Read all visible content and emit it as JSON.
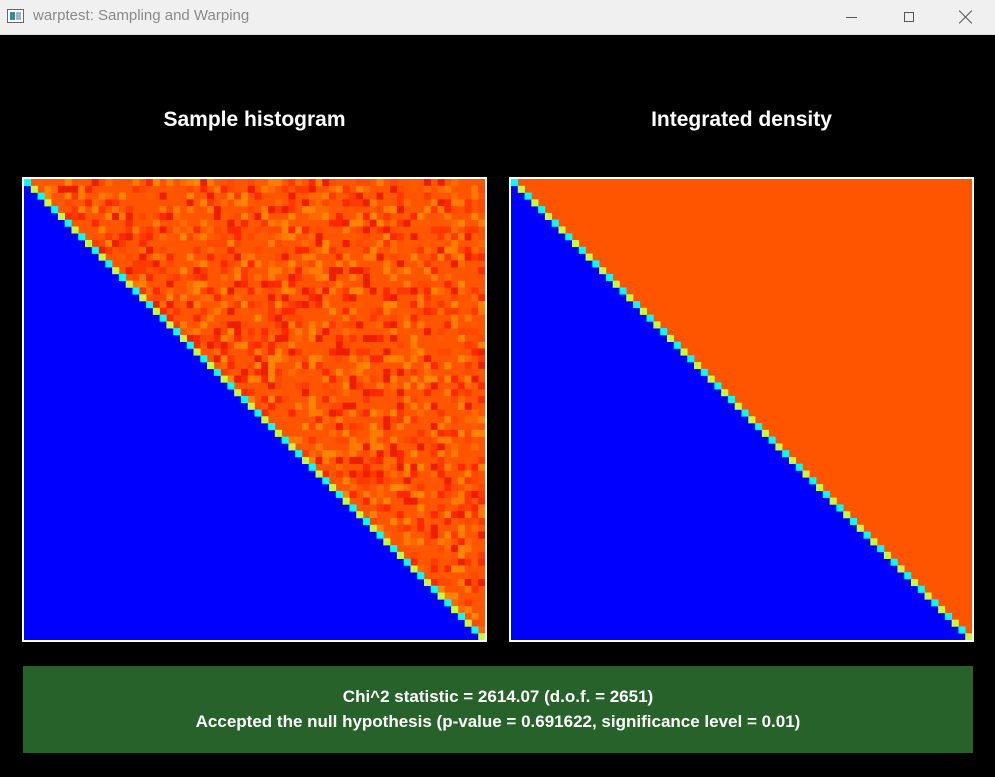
{
  "window": {
    "title": "warptest: Sampling and Warping",
    "icon": "app-window-icon"
  },
  "panels": {
    "left_title": "Sample histogram",
    "right_title": "Integrated density"
  },
  "status": {
    "line1": "Chi^2 statistic = 2614.07 (d.o.f. = 2651)",
    "line2": "Accepted the null hypothesis (p-value = 0.691622, significance level = 0.01)",
    "color": "#27622a"
  },
  "colors": {
    "empty": "#0000ff",
    "density": "#ff5500",
    "diagonal_a": "#00ffff",
    "diagonal_b": "#bfff40"
  }
}
